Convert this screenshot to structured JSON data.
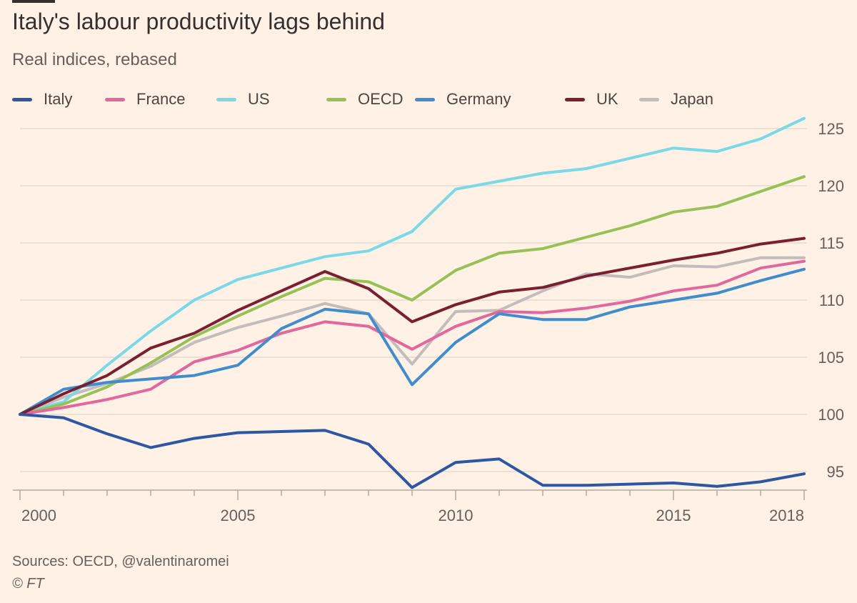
{
  "title": "Italy's labour productivity lags behind",
  "subtitle": "Real indices, rebased",
  "source": "Sources: OECD, @valentinaromei",
  "credit": "© FT",
  "colors": {
    "background": "#fff1e5",
    "gridline": "#e6d9ce",
    "axis": "#b3a9a0"
  },
  "chart_data": {
    "type": "line",
    "title": "Italy's labour productivity lags behind",
    "subtitle": "Real indices, rebased",
    "xlabel": "",
    "ylabel": "",
    "x": [
      2000,
      2001,
      2002,
      2003,
      2004,
      2005,
      2006,
      2007,
      2008,
      2009,
      2010,
      2011,
      2012,
      2013,
      2014,
      2015,
      2016,
      2017,
      2018
    ],
    "xlim": [
      2000,
      2018
    ],
    "ylim": [
      93,
      126
    ],
    "x_ticks": [
      2000,
      2005,
      2010,
      2015,
      2018
    ],
    "y_ticks": [
      95,
      100,
      105,
      110,
      115,
      120,
      125
    ],
    "y_axis_position": "right",
    "grid": "horizontal",
    "legend_position": "top",
    "series": [
      {
        "name": "Italy",
        "color": "#2d56a4",
        "values": [
          100.0,
          99.7,
          98.3,
          97.1,
          97.9,
          98.4,
          98.5,
          98.6,
          97.4,
          93.6,
          95.8,
          96.1,
          93.8,
          93.8,
          93.9,
          94.0,
          93.7,
          94.1,
          94.8
        ]
      },
      {
        "name": "France",
        "color": "#e2679b",
        "values": [
          100.0,
          100.6,
          101.3,
          102.2,
          104.6,
          105.6,
          107.1,
          108.1,
          107.7,
          105.7,
          107.7,
          109.0,
          108.9,
          109.3,
          109.9,
          110.8,
          111.3,
          112.8,
          113.4
        ]
      },
      {
        "name": "US",
        "color": "#79d9e8",
        "values": [
          100.0,
          101.1,
          104.3,
          107.3,
          110.0,
          111.8,
          112.8,
          113.8,
          114.3,
          116.0,
          119.7,
          120.4,
          121.1,
          121.5,
          122.4,
          123.3,
          123.0,
          124.1,
          125.9
        ]
      },
      {
        "name": "OECD",
        "color": "#96c156",
        "values": [
          100.0,
          100.9,
          102.4,
          104.5,
          106.8,
          108.6,
          110.3,
          111.9,
          111.6,
          110.0,
          112.6,
          114.1,
          114.5,
          115.5,
          116.5,
          117.7,
          118.2,
          119.5,
          120.8
        ]
      },
      {
        "name": "Germany",
        "color": "#3f8ccf",
        "values": [
          100.0,
          102.2,
          102.8,
          103.1,
          103.4,
          104.3,
          107.5,
          109.2,
          108.8,
          102.6,
          106.3,
          108.8,
          108.3,
          108.3,
          109.4,
          110.0,
          110.6,
          111.7,
          112.7
        ]
      },
      {
        "name": "UK",
        "color": "#7a1f31",
        "values": [
          100.0,
          101.8,
          103.4,
          105.8,
          107.1,
          109.1,
          110.8,
          112.5,
          111.0,
          108.1,
          109.6,
          110.7,
          111.1,
          112.1,
          112.8,
          113.5,
          114.1,
          114.9,
          115.4
        ]
      },
      {
        "name": "Japan",
        "color": "#c2bdba",
        "values": [
          100.0,
          101.5,
          102.7,
          104.2,
          106.3,
          107.6,
          108.6,
          109.7,
          108.8,
          104.4,
          109.0,
          109.1,
          110.8,
          112.3,
          112.0,
          113.0,
          112.9,
          113.7,
          113.7
        ]
      }
    ]
  }
}
